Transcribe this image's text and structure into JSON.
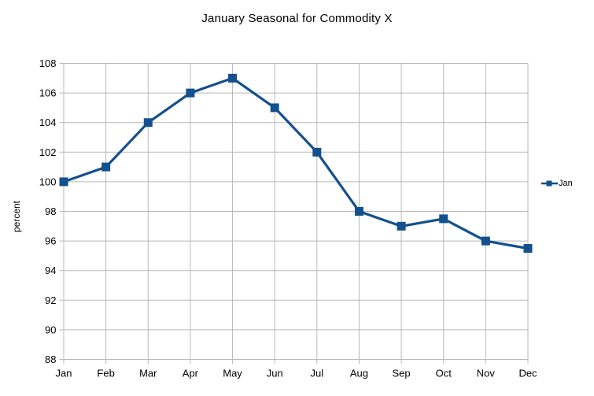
{
  "chart_data": {
    "type": "line",
    "title": "January Seasonal for Commodity X",
    "xlabel": "",
    "ylabel": "percent",
    "categories": [
      "Jan",
      "Feb",
      "Mar",
      "Apr",
      "May",
      "Jun",
      "Jul",
      "Aug",
      "Sep",
      "Oct",
      "Nov",
      "Dec"
    ],
    "series": [
      {
        "name": "Jan",
        "values": [
          100,
          101,
          104,
          106,
          107,
          105,
          102,
          98,
          97,
          97.5,
          96,
          95.5
        ]
      }
    ],
    "ylim": [
      88,
      108
    ],
    "ytick_step": 2,
    "grid": "both",
    "legend_position": "right",
    "marker": "square",
    "colors": {
      "series": "#14508e",
      "grid": "#b9b9b9",
      "text": "#000000",
      "background": "#ffffff"
    }
  }
}
